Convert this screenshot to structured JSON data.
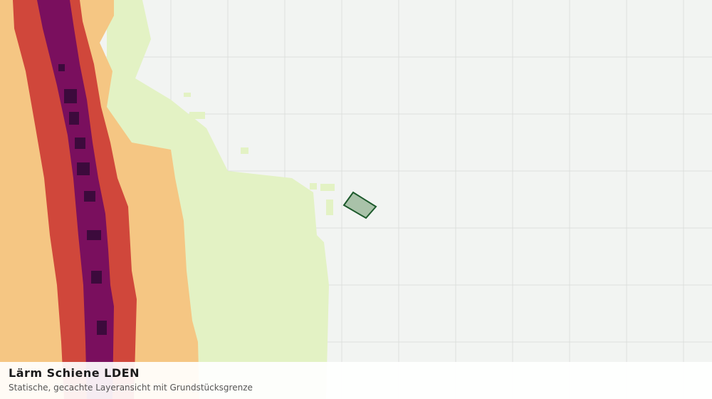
{
  "header": {
    "title": "Lärm Schiene LDEN",
    "subtitle": "Statische, gecachte Layeransicht mit Grundstücksgrenze"
  }
}
